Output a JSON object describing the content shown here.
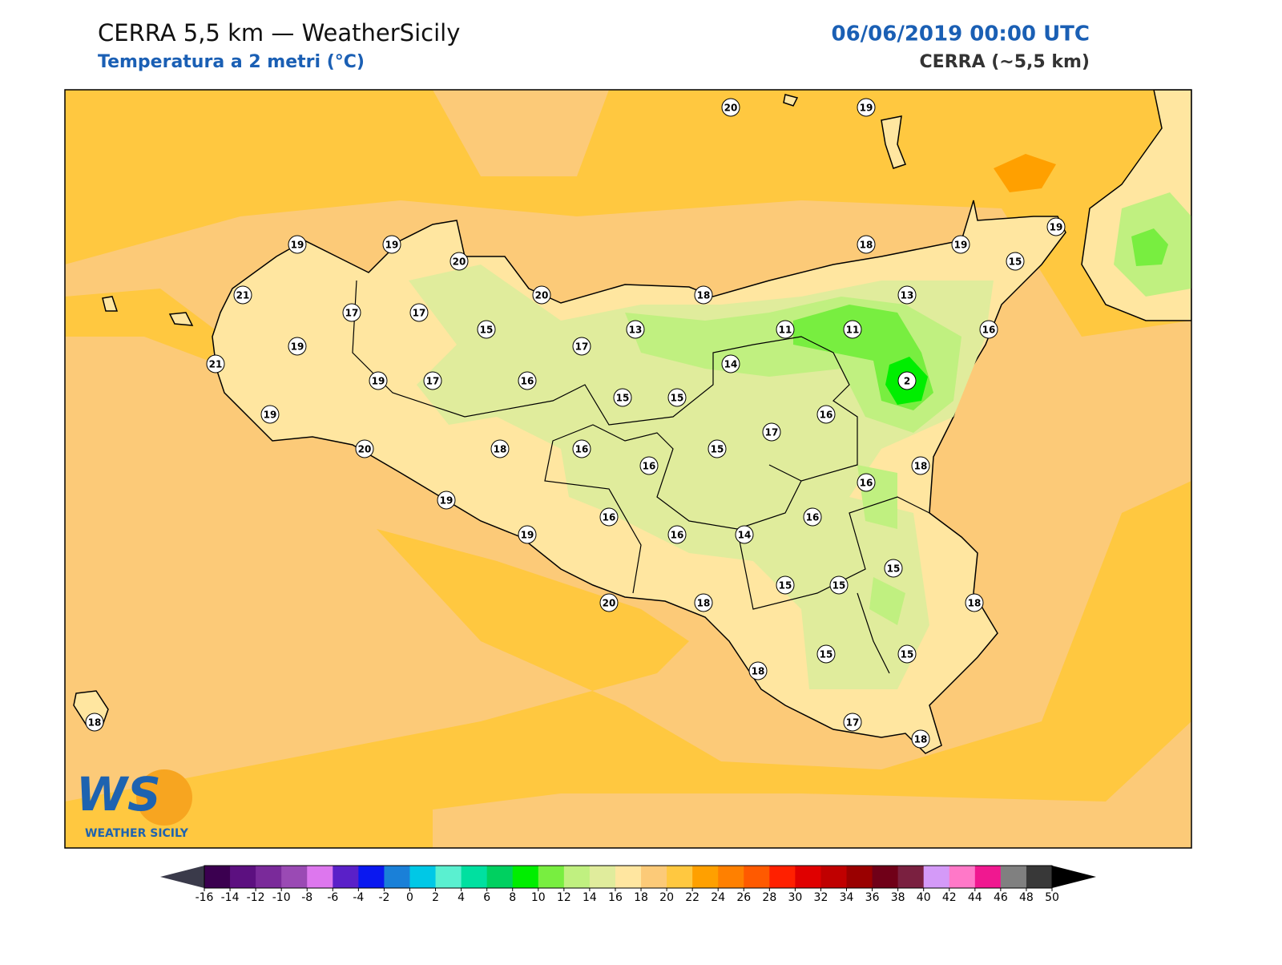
{
  "header": {
    "title": "CERRA 5,5 km — WeatherSicily",
    "subtitle": "Temperatura a 2 metri (°C)",
    "datetime": "06/06/2019 00:00 UTC",
    "model": "CERRA (~5,5 km)"
  },
  "stations": [
    20,
    19,
    19,
    19,
    20,
    18,
    19,
    19,
    15,
    21,
    20,
    18,
    13,
    17,
    17,
    15,
    13,
    11,
    11,
    16,
    19,
    17,
    21,
    14,
    19,
    17,
    16,
    2,
    15,
    15,
    19,
    16,
    17,
    20,
    18,
    16,
    15,
    16,
    18,
    16,
    19,
    16,
    16,
    19,
    16,
    14,
    15,
    15,
    15,
    20,
    18,
    18,
    18,
    15,
    15,
    17,
    18,
    18
  ],
  "colorbar": {
    "ticks": [
      -16,
      -14,
      -12,
      -10,
      -8,
      -6,
      -4,
      -2,
      0,
      2,
      4,
      6,
      8,
      10,
      12,
      14,
      16,
      18,
      20,
      22,
      24,
      26,
      28,
      30,
      32,
      34,
      36,
      38,
      40,
      42,
      44,
      46,
      48,
      50
    ],
    "colors": [
      "#3b0050",
      "#5c1080",
      "#7a2a9a",
      "#9a4ab4",
      "#dd77ee",
      "#5a20c8",
      "#0a18f0",
      "#1a80d8",
      "#00c8e6",
      "#5af0d0",
      "#00e0a0",
      "#00d060",
      "#00ee00",
      "#78ee40",
      "#c0f080",
      "#e0ec9c",
      "#ffe6a0",
      "#fcca78",
      "#ffc840",
      "#ffa000",
      "#ff8000",
      "#ff5a00",
      "#ff2000",
      "#e00000",
      "#c00000",
      "#9a0000",
      "#700018",
      "#7a2040",
      "#d49af8",
      "#ff78c8",
      "#f01890",
      "#808080",
      "#383838"
    ],
    "under_color": "#3a3a4a",
    "over_color": "#000000"
  },
  "logo": {
    "mark": "WS",
    "name": "WEATHER SICILY"
  }
}
